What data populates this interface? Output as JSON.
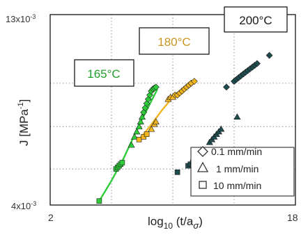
{
  "chart_data": {
    "type": "scatter",
    "xlabel": "log",
    "xlabel_sub": "10",
    "xlabel_tail": " (t/a",
    "xlabel_sigma": "σ",
    "xlabel_close": ")",
    "ylabel": "J [MPa",
    "ylabel_sup": "-1",
    "ylabel_close": "]",
    "x_tick_labels": {
      "min": "2",
      "max": "18"
    },
    "y_tick_labels": {
      "min": "4x10",
      "max": "13x10",
      "exp": "-3"
    },
    "xlim": [
      2,
      18
    ],
    "ylim": [
      0.004,
      0.013
    ],
    "y_scale": "log",
    "grid": true,
    "legend": {
      "placement": "bottom-right",
      "entries": [
        {
          "marker": "diamond",
          "label": "0.1 mm/min"
        },
        {
          "marker": "triangle",
          "label": "1 mm/min"
        },
        {
          "marker": "square",
          "label": "10 mm/min"
        }
      ]
    },
    "temperature_labels": [
      {
        "text": "165°C",
        "series": "165C",
        "color": "#22a02c"
      },
      {
        "text": "180°C",
        "series": "180C",
        "color": "#c8961e"
      },
      {
        "text": "200°C",
        "series": "200C",
        "color": "#1a1a1a"
      }
    ],
    "series": [
      {
        "key": "165C",
        "color": "#2ecc3a",
        "fit_line": [
          [
            5.2,
            0.0041
          ],
          [
            6.0,
            0.00465
          ],
          [
            6.8,
            0.00535
          ],
          [
            7.6,
            0.0063
          ],
          [
            8.3,
            0.0072
          ],
          [
            9.0,
            0.0082
          ]
        ],
        "points": [
          {
            "x": 5.2,
            "y": 0.0041,
            "m": "square"
          },
          {
            "x": 6.3,
            "y": 0.005,
            "m": "square"
          },
          {
            "x": 6.4,
            "y": 0.00505,
            "m": "square"
          },
          {
            "x": 6.5,
            "y": 0.0051,
            "m": "square"
          },
          {
            "x": 6.6,
            "y": 0.00515,
            "m": "square"
          },
          {
            "x": 6.7,
            "y": 0.0052,
            "m": "square"
          },
          {
            "x": 7.3,
            "y": 0.0058,
            "m": "triangle"
          },
          {
            "x": 7.5,
            "y": 0.0061,
            "m": "triangle"
          },
          {
            "x": 7.65,
            "y": 0.0063,
            "m": "triangle"
          },
          {
            "x": 7.8,
            "y": 0.0065,
            "m": "triangle"
          },
          {
            "x": 7.9,
            "y": 0.0067,
            "m": "triangle"
          },
          {
            "x": 8.0,
            "y": 0.0069,
            "m": "triangle"
          },
          {
            "x": 8.1,
            "y": 0.0071,
            "m": "diamond"
          },
          {
            "x": 8.2,
            "y": 0.0073,
            "m": "diamond"
          },
          {
            "x": 8.3,
            "y": 0.0075,
            "m": "diamond"
          },
          {
            "x": 8.4,
            "y": 0.0077,
            "m": "diamond"
          },
          {
            "x": 8.5,
            "y": 0.0079,
            "m": "diamond"
          },
          {
            "x": 8.6,
            "y": 0.0081,
            "m": "diamond"
          },
          {
            "x": 8.7,
            "y": 0.0082,
            "m": "diamond"
          },
          {
            "x": 8.8,
            "y": 0.00825,
            "m": "diamond"
          },
          {
            "x": 8.9,
            "y": 0.0083,
            "m": "diamond"
          }
        ]
      },
      {
        "key": "180C",
        "color": "#f2b51f",
        "fit_line": [
          [
            7.8,
            0.006
          ],
          [
            8.5,
            0.0065
          ],
          [
            9.3,
            0.0072
          ],
          [
            10.0,
            0.0078
          ],
          [
            10.8,
            0.0082
          ],
          [
            11.4,
            0.0086
          ]
        ],
        "points": [
          {
            "x": 7.8,
            "y": 0.006,
            "m": "square"
          },
          {
            "x": 8.1,
            "y": 0.0061,
            "m": "square"
          },
          {
            "x": 8.3,
            "y": 0.0062,
            "m": "square"
          },
          {
            "x": 8.6,
            "y": 0.0064,
            "m": "triangle"
          },
          {
            "x": 8.8,
            "y": 0.0066,
            "m": "triangle"
          },
          {
            "x": 8.9,
            "y": 0.0067,
            "m": "triangle"
          },
          {
            "x": 9.7,
            "y": 0.0077,
            "m": "triangle"
          },
          {
            "x": 9.85,
            "y": 0.0078,
            "m": "triangle"
          },
          {
            "x": 10.0,
            "y": 0.0078,
            "m": "triangle"
          },
          {
            "x": 10.15,
            "y": 0.0079,
            "m": "diamond"
          },
          {
            "x": 10.3,
            "y": 0.0079,
            "m": "diamond"
          },
          {
            "x": 10.45,
            "y": 0.008,
            "m": "diamond"
          },
          {
            "x": 10.6,
            "y": 0.0081,
            "m": "diamond"
          },
          {
            "x": 10.75,
            "y": 0.0082,
            "m": "diamond"
          },
          {
            "x": 10.9,
            "y": 0.0083,
            "m": "diamond"
          },
          {
            "x": 11.05,
            "y": 0.0084,
            "m": "diamond"
          },
          {
            "x": 11.2,
            "y": 0.0085,
            "m": "diamond"
          },
          {
            "x": 11.4,
            "y": 0.0086,
            "m": "diamond"
          }
        ]
      },
      {
        "key": "200C",
        "color": "#1f4d4f",
        "fit_line": [],
        "points": [
          {
            "x": 10.3,
            "y": 0.0049,
            "m": "square"
          },
          {
            "x": 11.0,
            "y": 0.0051,
            "m": "square"
          },
          {
            "x": 11.15,
            "y": 0.00515,
            "m": "square"
          },
          {
            "x": 11.3,
            "y": 0.0052,
            "m": "square"
          },
          {
            "x": 11.45,
            "y": 0.0053,
            "m": "square"
          },
          {
            "x": 11.6,
            "y": 0.0054,
            "m": "square"
          },
          {
            "x": 11.7,
            "y": 0.0055,
            "m": "square"
          },
          {
            "x": 12.4,
            "y": 0.0059,
            "m": "triangle"
          },
          {
            "x": 12.55,
            "y": 0.006,
            "m": "triangle"
          },
          {
            "x": 12.7,
            "y": 0.0061,
            "m": "triangle"
          },
          {
            "x": 12.85,
            "y": 0.0062,
            "m": "triangle"
          },
          {
            "x": 13.0,
            "y": 0.0063,
            "m": "triangle"
          },
          {
            "x": 13.15,
            "y": 0.0064,
            "m": "triangle"
          },
          {
            "x": 14.2,
            "y": 0.0069,
            "m": "triangle"
          },
          {
            "x": 13.5,
            "y": 0.0083,
            "m": "diamond"
          },
          {
            "x": 14.0,
            "y": 0.0086,
            "m": "diamond"
          },
          {
            "x": 14.15,
            "y": 0.0087,
            "m": "diamond"
          },
          {
            "x": 14.3,
            "y": 0.0088,
            "m": "diamond"
          },
          {
            "x": 14.45,
            "y": 0.0089,
            "m": "diamond"
          },
          {
            "x": 14.6,
            "y": 0.009,
            "m": "diamond"
          },
          {
            "x": 14.75,
            "y": 0.0091,
            "m": "diamond"
          },
          {
            "x": 14.9,
            "y": 0.0092,
            "m": "diamond"
          },
          {
            "x": 15.05,
            "y": 0.0093,
            "m": "diamond"
          },
          {
            "x": 15.2,
            "y": 0.0094,
            "m": "diamond"
          },
          {
            "x": 15.35,
            "y": 0.0095,
            "m": "diamond"
          },
          {
            "x": 15.5,
            "y": 0.0096,
            "m": "diamond"
          },
          {
            "x": 16.3,
            "y": 0.0101,
            "m": "diamond"
          }
        ]
      }
    ]
  }
}
